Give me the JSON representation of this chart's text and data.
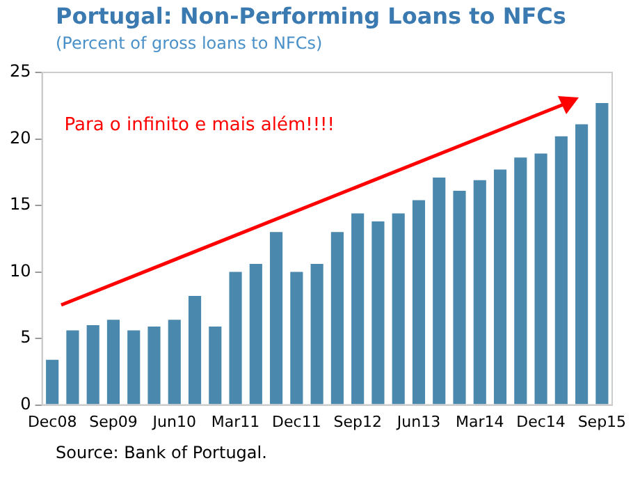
{
  "chart_data": {
    "type": "bar",
    "title": "Portugal: Non-Performing Loans to NFCs",
    "subtitle": "(Percent of gross loans to NFCs)",
    "categories": [
      "Dec08",
      null,
      null,
      "Sep09",
      null,
      null,
      "Jun10",
      null,
      null,
      "Mar11",
      null,
      null,
      "Dec11",
      null,
      null,
      "Sep12",
      null,
      null,
      "Jun13",
      null,
      null,
      "Mar14",
      null,
      null,
      "Dec14",
      null,
      null,
      "Sep15"
    ],
    "values": [
      3.4,
      5.6,
      6.0,
      6.4,
      5.6,
      5.9,
      6.4,
      8.2,
      5.9,
      10.0,
      10.6,
      13.0,
      10.0,
      10.6,
      13.0,
      14.4,
      13.8,
      14.4,
      15.4,
      17.1,
      16.1,
      16.9,
      17.7,
      18.6,
      18.9,
      20.2,
      21.1,
      22.7
    ],
    "color": "#4a88ad",
    "ylim": [
      0,
      25
    ],
    "yticks": [
      0,
      5,
      10,
      15,
      20,
      25
    ],
    "grid": false,
    "legend": false,
    "annotations": [
      "Para o infinito e mais além!!!!",
      "Source: Bank of Portugal."
    ]
  }
}
